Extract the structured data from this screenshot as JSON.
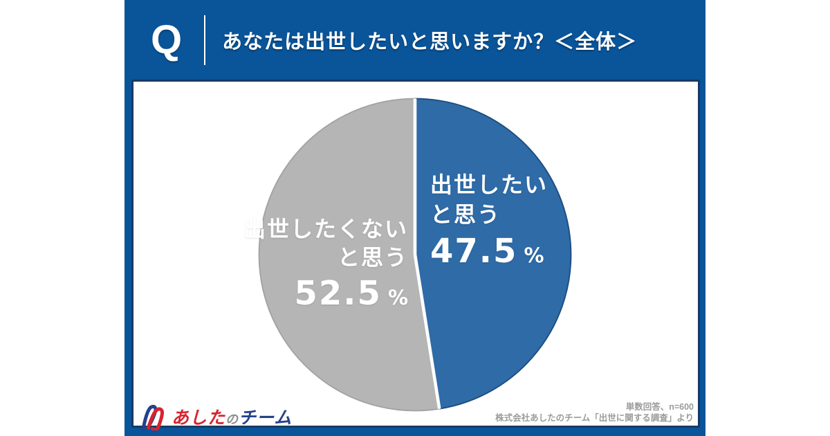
{
  "header": {
    "q_label": "Q",
    "title": "あなたは出世したいと思いますか？＜全体＞"
  },
  "chart_data": {
    "type": "pie",
    "title": "あなたは出世したいと思いますか？＜全体＞",
    "unit": "%",
    "start_angle_deg": -90,
    "direction": "clockwise",
    "legend": "none",
    "n": 600,
    "slices": [
      {
        "name": "出世したいと思う",
        "label_line1": "出世したい",
        "label_line2": "と思う",
        "value": 47.5,
        "value_display": "47.5",
        "color": "#2e6ba7",
        "edge_color": "#1b4c7e",
        "text_color": "#ffffff"
      },
      {
        "name": "出世したくないと思う",
        "label_line1": "出世したくない",
        "label_line2": "と思う",
        "value": 52.5,
        "value_display": "52.5",
        "color": "#b5b5b6",
        "edge_color": "#a2a2a4",
        "text_color": "#ffffff"
      }
    ]
  },
  "footer": {
    "logo": {
      "text_part1": "あした",
      "text_part2": "の",
      "text_part3": "チーム",
      "color_part1": "#d7232e",
      "color_part2": "#8e8e90",
      "color_part3": "#24418c",
      "icon": "paperclip-person"
    },
    "note_line1": "単数回答、n=600",
    "note_line2": "株式会社あしたのチーム「出世に関する調査」より"
  },
  "theme": {
    "background": "#ffffff",
    "panel_blue": "#0a5499",
    "card_border_navy": "#173a63",
    "divider_white": "#ffffff"
  }
}
